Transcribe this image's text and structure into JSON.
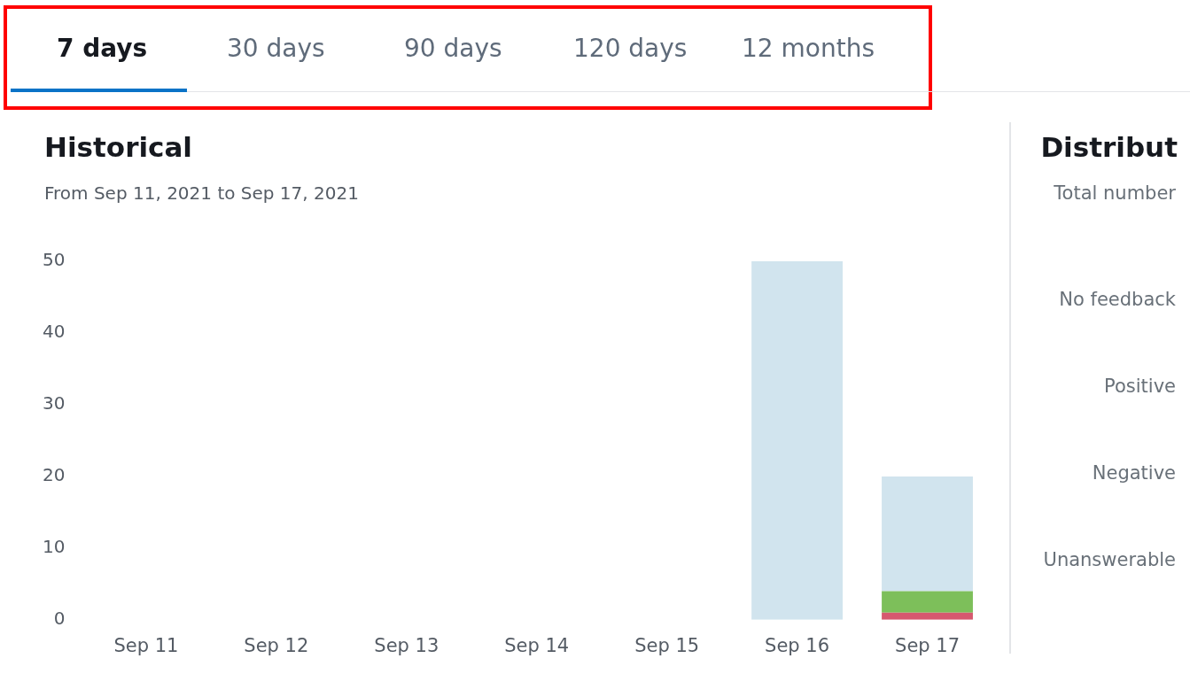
{
  "chart_data": {
    "type": "bar",
    "title": "Historical",
    "subtitle": "From Sep 11, 2021 to Sep 17, 2021",
    "categories": [
      "Sep 11",
      "Sep 12",
      "Sep 13",
      "Sep 14",
      "Sep 15",
      "Sep 16",
      "Sep 17"
    ],
    "series": [
      {
        "color": "#d6596f",
        "values": [
          0,
          0,
          0,
          0,
          0,
          0,
          1
        ]
      },
      {
        "color": "#7dbf5a",
        "values": [
          0,
          0,
          0,
          0,
          0,
          0,
          3
        ]
      },
      {
        "color": "#d1e4ee",
        "values": [
          0,
          0,
          0,
          0,
          0,
          50,
          16
        ]
      }
    ],
    "stacked": true,
    "ylim": [
      0,
      50
    ],
    "yticks": [
      0,
      10,
      20,
      30,
      40,
      50
    ],
    "grid": false,
    "legend": false,
    "annotations": [
      "7 days",
      "30 days",
      "90 days",
      "120 days",
      "12 months",
      "Distribut",
      "Total number",
      "No feedback",
      "Positive",
      "Negative",
      "Unanswerable"
    ]
  }
}
